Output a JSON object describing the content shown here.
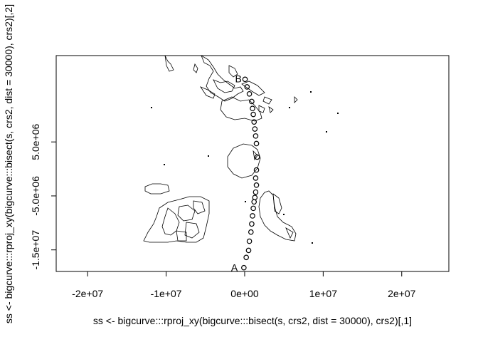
{
  "chart_data": {
    "type": "scatter",
    "title": "",
    "xlabel": "ss <- bigcurve:::rproj_xy(bigcurve:::bisect(s, crs2, dist = 30000), crs2)[,1]",
    "ylabel": "ss <- bigcurve:::rproj_xy(bigcurve:::bisect(s, crs2, dist = 30000), crs2)[,2]",
    "xlim": [
      -24000000,
      26000000
    ],
    "ylim": [
      -19000000,
      21000000
    ],
    "x_ticks": [
      -20000000,
      -10000000,
      0,
      10000000,
      20000000
    ],
    "x_tick_labels": [
      "-2e+07",
      "-1e+07",
      "0e+00",
      "1e+07",
      "2e+07"
    ],
    "y_ticks": [
      -15000000,
      -5000000,
      5000000
    ],
    "y_tick_labels": [
      "-1.5e+07",
      "-5.0e+06",
      "5.0e+06"
    ],
    "grid": false,
    "series": [
      {
        "marker": "open-circle",
        "x": [
          -100000,
          200000,
          500000,
          600000,
          800000,
          900000,
          1000000,
          1100000,
          1200000,
          1300000,
          1400000,
          1500000,
          1400000,
          1500000,
          1600000,
          1500000,
          1400000,
          1300000,
          1200000,
          1100000,
          1000000,
          900000,
          600000,
          300000,
          50000
        ],
        "y": [
          -18300000,
          -16400000,
          -15100000,
          -13400000,
          -11700000,
          -10200000,
          -8700000,
          -7300000,
          -6100000,
          -5300000,
          -4300000,
          -3000000,
          -1700000,
          -200000,
          2200000,
          4700000,
          6100000,
          7400000,
          8700000,
          10100000,
          11200000,
          12500000,
          13900000,
          15200000,
          16600000
        ]
      }
    ],
    "annotations": [
      {
        "text": "A",
        "x": -1300000,
        "y": -18300000
      },
      {
        "text": "B",
        "x": -800000,
        "y": 16700000
      }
    ]
  }
}
